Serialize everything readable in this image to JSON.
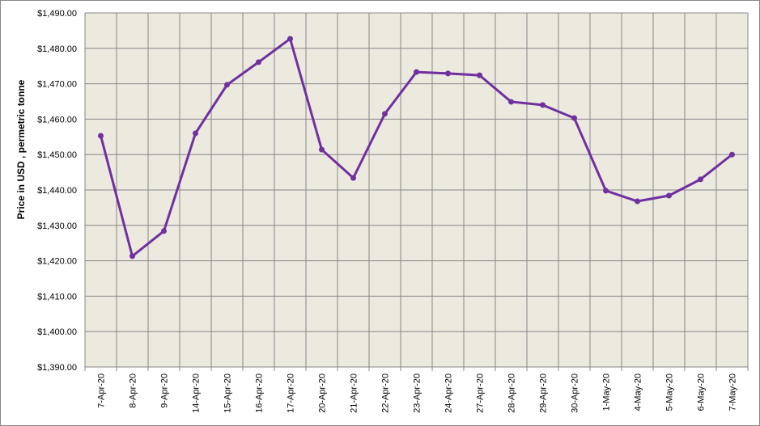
{
  "chart_data": {
    "type": "line",
    "y_label": "Price in USD , permetric tonne",
    "categories": [
      "7-Apr-20",
      "8-Apr-20",
      "9-Apr-20",
      "14-Apr-20",
      "15-Apr-20",
      "16-Apr-20",
      "17-Apr-20",
      "20-Apr-20",
      "21-Apr-20",
      "22-Apr-20",
      "23-Apr-20",
      "24-Apr-20",
      "27-Apr-20",
      "28-Apr-20",
      "29-Apr-20",
      "30-Apr-20",
      "1-May-20",
      "4-May-20",
      "5-May-20",
      "6-May-20",
      "7-May-20"
    ],
    "values": [
      1455.3,
      1421.3,
      1428.4,
      1456.0,
      1469.7,
      1476.1,
      1482.7,
      1451.4,
      1443.4,
      1461.5,
      1473.3,
      1472.9,
      1472.4,
      1464.9,
      1464.0,
      1460.3,
      1439.8,
      1436.8,
      1438.4,
      1443.0,
      1450.0
    ],
    "color": "#7030a0",
    "ylim": [
      1390,
      1490
    ],
    "yticks": [
      {
        "value": 1390,
        "label": "$1,390.00"
      },
      {
        "value": 1400,
        "label": "$1,400.00"
      },
      {
        "value": 1410,
        "label": "$1,410.00"
      },
      {
        "value": 1420,
        "label": "$1,420.00"
      },
      {
        "value": 1430,
        "label": "$1,430.00"
      },
      {
        "value": 1440,
        "label": "$1,440.00"
      },
      {
        "value": 1450,
        "label": "$1,450.00"
      },
      {
        "value": 1460,
        "label": "$1,460.00"
      },
      {
        "value": 1470,
        "label": "$1,470.00"
      },
      {
        "value": 1480,
        "label": "$1,480.00"
      },
      {
        "value": 1490,
        "label": "$1,490.00"
      }
    ],
    "grid": true
  }
}
